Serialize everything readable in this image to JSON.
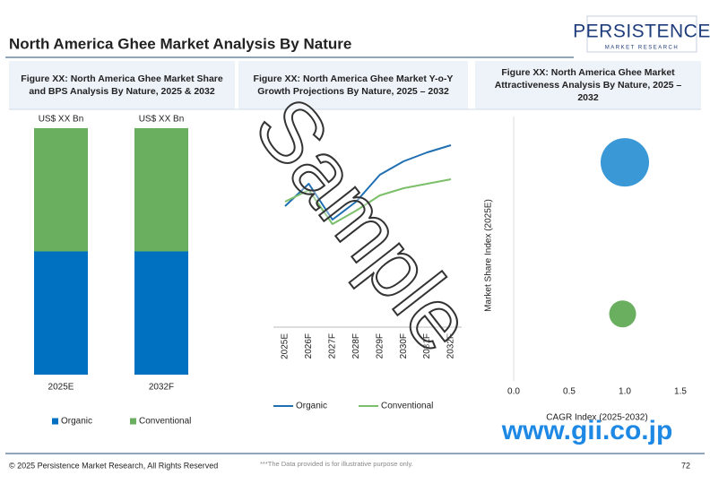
{
  "page": {
    "title": "North America Ghee Market Analysis By Nature",
    "logo": {
      "name": "PERSISTENCE",
      "tagline": "MARKET RESEARCH"
    },
    "footer": {
      "copyright": "© 2025 Persistence Market Research, All Rights Reserved",
      "note": "***The Data provided is for illustrative purpose only.",
      "page_number": "72"
    },
    "watermark": "Sample",
    "stamp": "www.gii.co.jp"
  },
  "chart_data": [
    {
      "type": "stacked-bar",
      "title": [
        "Figure XX: North America Ghee  Market Share",
        "and BPS Analysis By Nature, 2025 & 2032"
      ],
      "categories": [
        "2025E",
        "2032F"
      ],
      "series": [
        {
          "name": "Organic",
          "color": "#0070c0",
          "values": [
            50,
            50
          ]
        },
        {
          "name": "Conventional",
          "color": "#6aaf5f",
          "values": [
            50,
            50
          ]
        }
      ],
      "total_labels": [
        "US$ XX Bn",
        "US$ XX Bn"
      ],
      "legend": "bottom"
    },
    {
      "type": "line",
      "title": [
        "Figure XX: North America Ghee  Market Y-o-Y",
        "Growth Projections By Nature, 2025 – 2032"
      ],
      "categories": [
        "2025E",
        "2026F",
        "2027F",
        "2028F",
        "2029F",
        "2030F",
        "2031F",
        "2032F"
      ],
      "series": [
        {
          "name": "Organic",
          "color": "#1f6fb2",
          "values": [
            13.5,
            16,
            12,
            14,
            17,
            18.5,
            19.5,
            20.3
          ]
        },
        {
          "name": "Conventional",
          "color": "#7cbf6a",
          "values": [
            14,
            15.3,
            11.5,
            13,
            14.7,
            15.5,
            16,
            16.5
          ]
        }
      ],
      "ylim": [
        0,
        22.5
      ],
      "legend": "bottom"
    },
    {
      "type": "bubble",
      "title": [
        "Figure XX: North America Ghee  Market",
        "Attractiveness Analysis By Nature, 2025 –",
        "2032"
      ],
      "xlabel": "CAGR Index (2025-2032)",
      "ylabel": "Market Share Index (2025E)",
      "xlim": [
        0,
        1.5
      ],
      "xticks": [
        {
          "value": 0,
          "label": "0.0"
        },
        0.5,
        {
          "value": 1,
          "label": "1.0"
        },
        1.5
      ],
      "ylim": [
        0,
        1.5
      ],
      "series": [
        {
          "color": "#3a98d6",
          "x": [
            1.0
          ],
          "values": [
            1.24
          ],
          "size": [
            2.85
          ]
        },
        {
          "color": "#6aaf5f",
          "x": [
            0.98
          ],
          "values": [
            0.38
          ],
          "size": [
            0.88
          ]
        }
      ]
    }
  ]
}
